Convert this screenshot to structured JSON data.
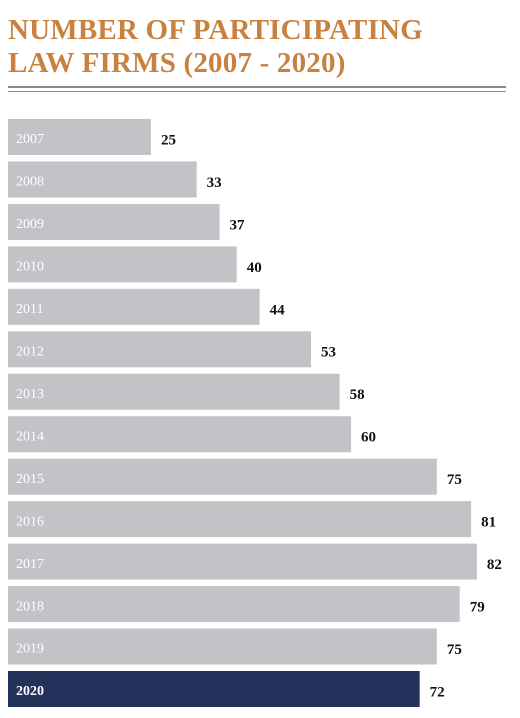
{
  "chart_data": {
    "type": "barh",
    "title": "NUMBER OF PARTICIPATING LAW FIRMS (2007 - 2020)",
    "categories": [
      "2007",
      "2008",
      "2009",
      "2010",
      "2011",
      "2012",
      "2013",
      "2014",
      "2015",
      "2016",
      "2017",
      "2018",
      "2019",
      "2020"
    ],
    "values": [
      25,
      33,
      37,
      40,
      44,
      53,
      58,
      60,
      75,
      81,
      82,
      79,
      75,
      72
    ],
    "colors": [
      "#c3c2c7",
      "#c3c2c7",
      "#c3c2c7",
      "#c3c2c7",
      "#c3c2c7",
      "#c3c2c7",
      "#c3c2c7",
      "#c3c2c7",
      "#c3c2c7",
      "#c3c2c7",
      "#c3c2c7",
      "#c3c2c7",
      "#c3c2c7",
      "#22325a"
    ],
    "xlim": [
      0,
      85
    ]
  }
}
